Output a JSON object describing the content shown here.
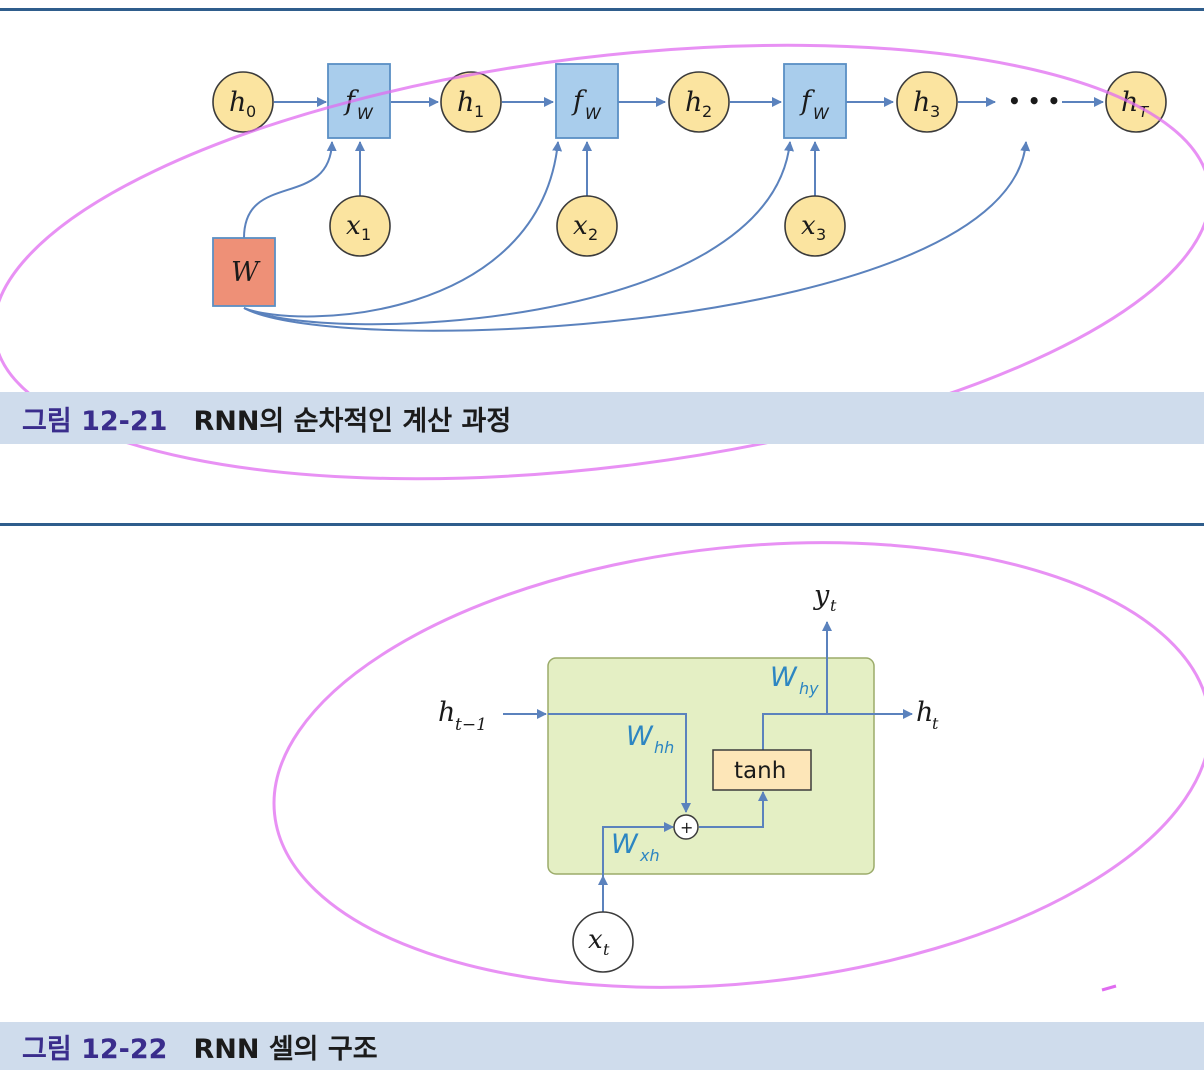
{
  "figure1": {
    "caption_number": "그림 12-21",
    "caption_text": "RNN의 순차적인 계산 과정",
    "hidden_states": [
      "h",
      "h",
      "h",
      "h",
      "h"
    ],
    "hidden_subscripts": [
      "0",
      "1",
      "2",
      "3",
      "T"
    ],
    "function_label": "f",
    "function_subscript": "W",
    "inputs": [
      "x",
      "x",
      "x"
    ],
    "input_subscripts": [
      "1",
      "2",
      "3"
    ],
    "weight_label": "W",
    "ellipsis": "• • •"
  },
  "figure2": {
    "caption_number": "그림 12-22",
    "caption_text": "RNN 셀의 구조",
    "h_prev": "h",
    "h_prev_sub": "t−1",
    "h_out": "h",
    "h_out_sub": "t",
    "y_out": "y",
    "y_out_sub": "t",
    "x_in": "x",
    "x_in_sub": "t",
    "w_hh": "W",
    "w_hh_sub": "hh",
    "w_xh": "W",
    "w_xh_sub": "xh",
    "w_hy": "W",
    "w_hy_sub": "hy",
    "activation": "tanh",
    "plus": "+"
  },
  "colors": {
    "rule": "#2f5d8c",
    "caption_bg": "#cfdcec",
    "caption_number": "#3a2d8c",
    "circle_fill": "#fbe4a0",
    "box_fill": "#a9cdec",
    "weight_fill": "#ee9077",
    "cell_fill": "#e4efc4",
    "tanh_fill": "#fde6b8",
    "arrow": "#5b82bd",
    "weight_label": "#2d86c2",
    "annotation": "#e06cf0"
  }
}
